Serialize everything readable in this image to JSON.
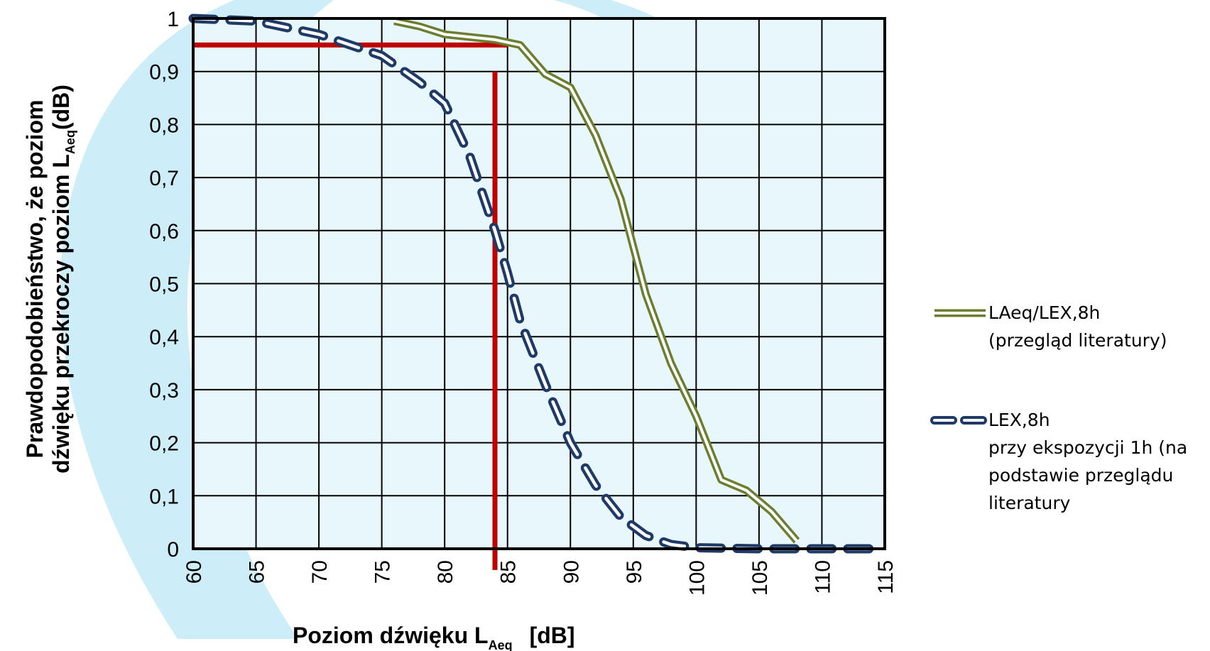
{
  "chart_data": {
    "type": "line",
    "xlabel": "Poziom dźwięku L",
    "xlabel_sub": "Aeq",
    "xlabel_unit": "[dB]",
    "ylabel_line1": "Prawdopodobieństwo, że poziom",
    "ylabel_line2": "dźwięku przekroczy poziom L",
    "ylabel_sub": "Aeq",
    "ylabel_unit": "(dB)",
    "xlim": [
      60,
      115
    ],
    "ylim": [
      0,
      1
    ],
    "x_ticks": [
      "60",
      "65",
      "70",
      "75",
      "80",
      "85",
      "90",
      "95",
      "100",
      "105",
      "110",
      "115"
    ],
    "y_ticks": [
      "0",
      "0,1",
      "0,2",
      "0,3",
      "0,4",
      "0,5",
      "0,6",
      "0,7",
      "0,8",
      "0,9",
      "1"
    ],
    "grid": true,
    "legend_position": "right",
    "series": [
      {
        "name_line1": "LAeq/LEX,8h",
        "name_line2": "(przegląd literatury)",
        "color": "#6b7d2e",
        "style": "double-solid",
        "x": [
          76,
          78,
          80,
          82,
          84,
          86,
          88,
          90,
          92,
          94,
          95,
          96,
          98,
          100,
          102,
          104,
          106,
          108
        ],
        "y": [
          0.995,
          0.985,
          0.97,
          0.965,
          0.96,
          0.95,
          0.895,
          0.87,
          0.78,
          0.66,
          0.57,
          0.48,
          0.35,
          0.25,
          0.13,
          0.11,
          0.07,
          0.015
        ]
      },
      {
        "name_line1": "LEX,8h",
        "name_line2": "przy ekspozycji 1h (na",
        "name_line3": "podstawie przeglądu",
        "name_line4": "literatury",
        "color": "#1f3a66",
        "style": "double-dashed",
        "x": [
          60,
          65,
          70,
          75,
          78,
          80,
          82,
          84,
          85,
          86,
          88,
          90,
          92,
          94,
          96,
          98,
          100,
          105,
          110,
          114
        ],
        "y": [
          1,
          0.995,
          0.97,
          0.93,
          0.88,
          0.84,
          0.74,
          0.6,
          0.52,
          0.43,
          0.31,
          0.2,
          0.12,
          0.06,
          0.025,
          0.008,
          0.002,
          0,
          0,
          0
        ]
      }
    ],
    "reference_lines": [
      {
        "orientation": "horizontal",
        "value": 0.95,
        "x_from": 60,
        "x_to": 85,
        "color": "#c00000"
      },
      {
        "orientation": "vertical",
        "value": 84,
        "y_from": -0.04,
        "y_to": 0.9,
        "color": "#c00000"
      }
    ],
    "background_color": "#e8f7fb",
    "watermark_color": "#cdeef8"
  }
}
